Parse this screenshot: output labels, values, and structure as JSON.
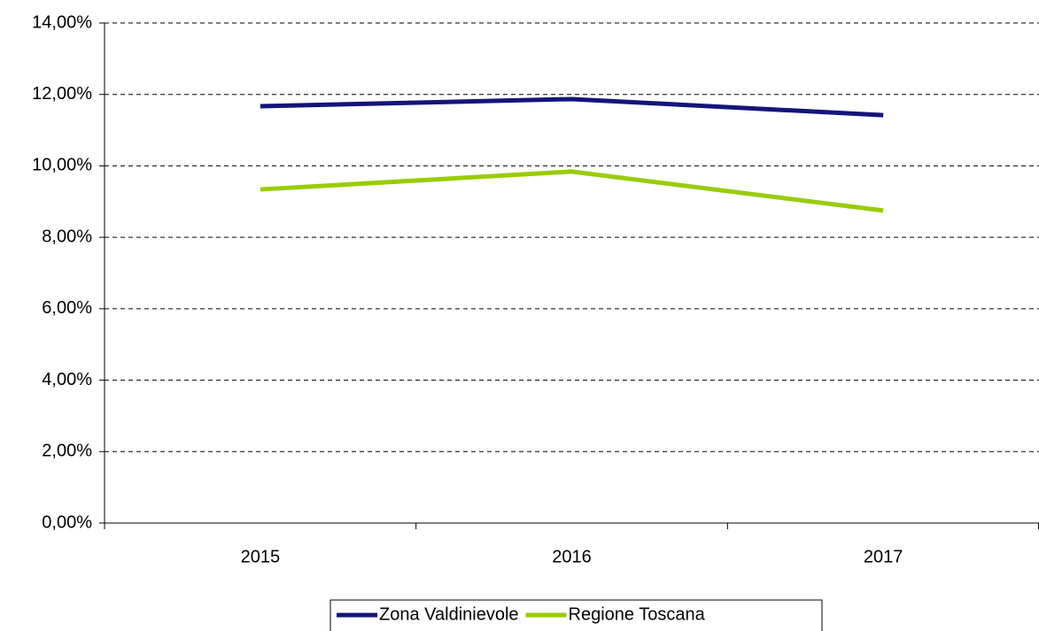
{
  "chart_data": {
    "type": "line",
    "categories": [
      "2015",
      "2016",
      "2017"
    ],
    "series": [
      {
        "name": "Zona Valdinievole",
        "color": "#14147a",
        "values": [
          11.67,
          11.87,
          11.42
        ]
      },
      {
        "name": "Regione Toscana",
        "color": "#99cc00",
        "values": [
          9.34,
          9.84,
          8.75
        ]
      }
    ],
    "ylim": [
      0,
      14
    ],
    "yticks": [
      {
        "value": 0,
        "label": "0,00%"
      },
      {
        "value": 2,
        "label": "2,00%"
      },
      {
        "value": 4,
        "label": "4,00%"
      },
      {
        "value": 6,
        "label": "6,00%"
      },
      {
        "value": 8,
        "label": "8,00%"
      },
      {
        "value": 10,
        "label": "10,00%"
      },
      {
        "value": 12,
        "label": "12,00%"
      },
      {
        "value": 14,
        "label": "14,00%"
      }
    ],
    "grid": true,
    "legend": "bottom"
  }
}
